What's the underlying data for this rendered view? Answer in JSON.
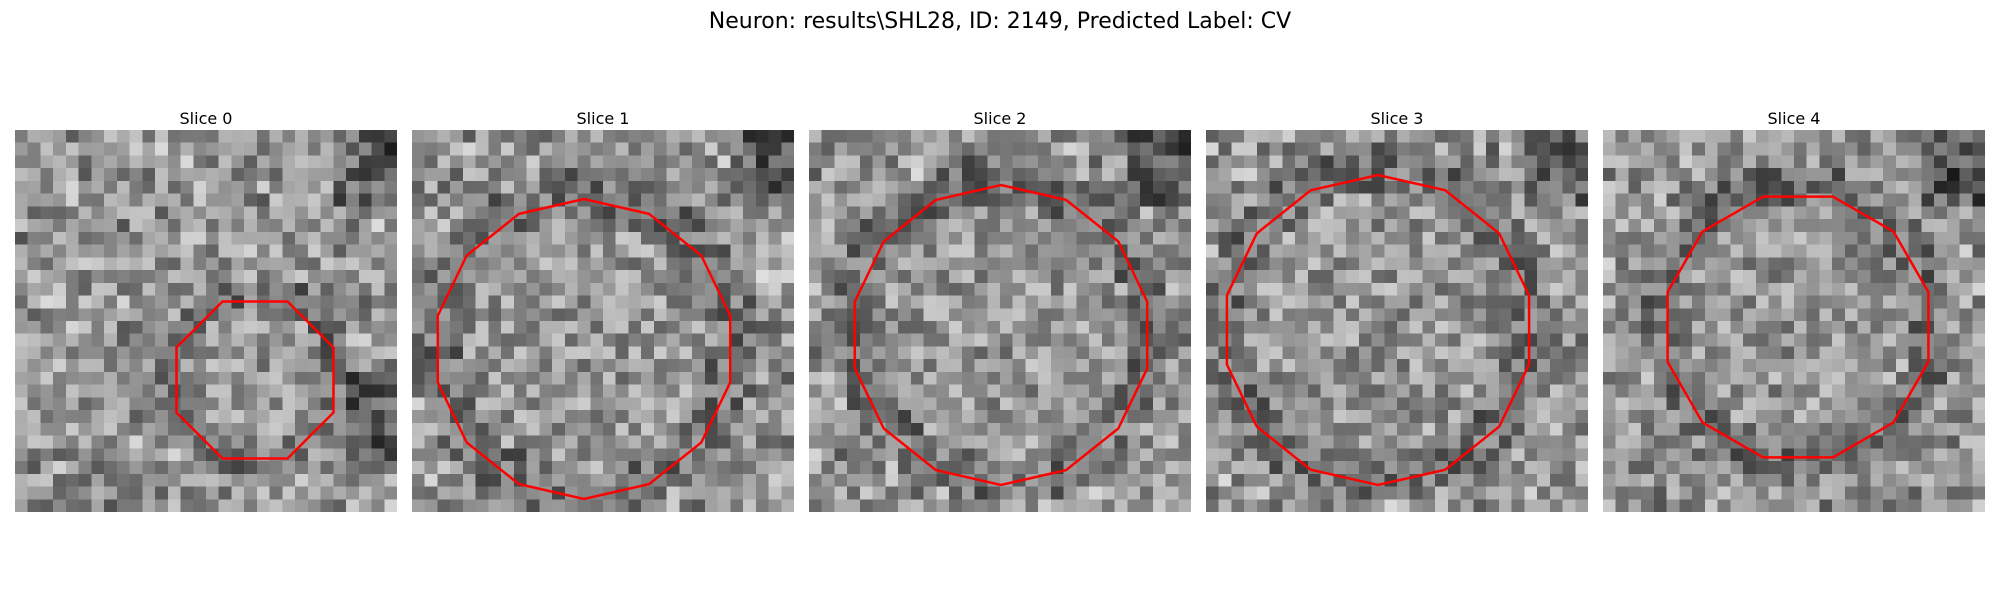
{
  "figure": {
    "suptitle": "Neuron: results\\SHL28, ID: 2149, Predicted Label: CV"
  },
  "panels": [
    {
      "title": "Slice 0"
    },
    {
      "title": "Slice 1"
    },
    {
      "title": "Slice 2"
    },
    {
      "title": "Slice 3"
    },
    {
      "title": "Slice 4"
    }
  ],
  "colors": {
    "contour": "#ff0000",
    "background": "#ffffff"
  }
}
